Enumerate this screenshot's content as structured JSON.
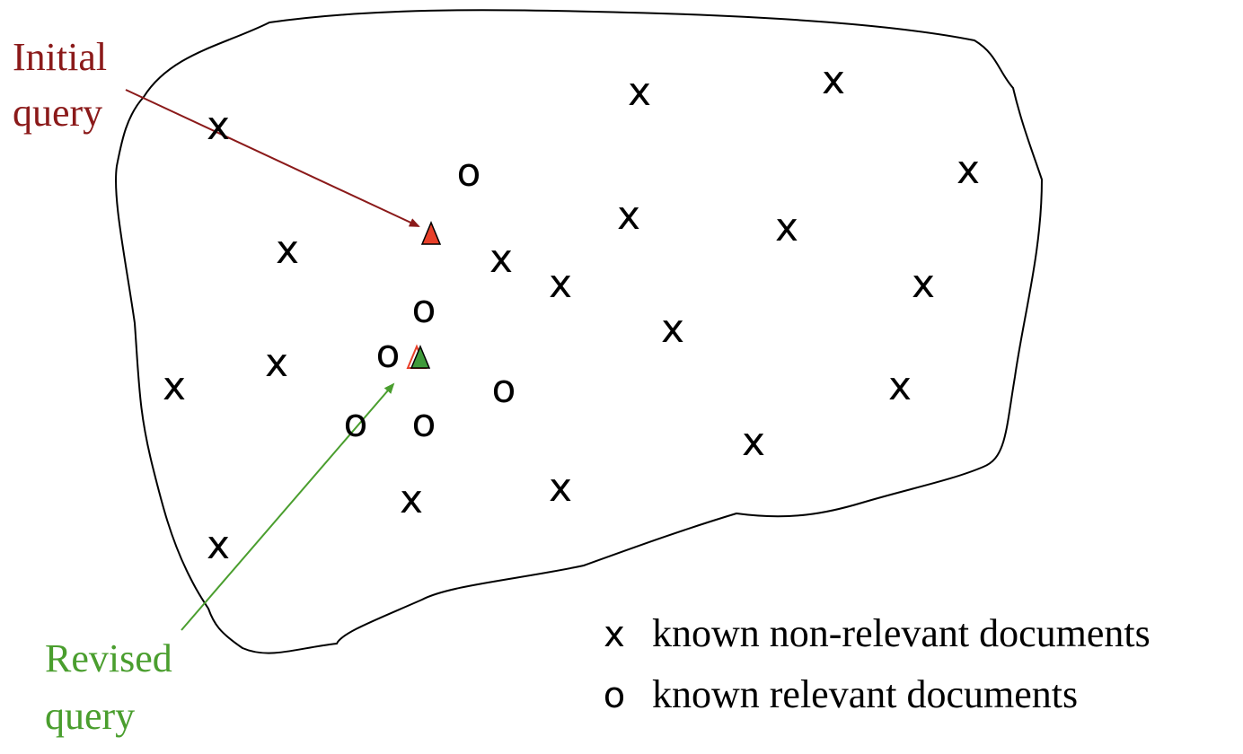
{
  "labels": {
    "initial_line1": "Initial",
    "initial_line2": "query",
    "revised_line1": "Revised",
    "revised_line2": "query"
  },
  "colors": {
    "initial": "#8b1a1a",
    "revised": "#4a9e2e",
    "initial_marker": "#e8402a",
    "revised_marker": "#3f9a3a"
  },
  "mark_symbols": {
    "non_relevant": "x",
    "relevant": "o"
  },
  "legend": {
    "non_relevant": {
      "symbol": "x",
      "text": "known non-relevant documents"
    },
    "relevant": {
      "symbol": "o",
      "text": "known relevant documents"
    }
  }
}
